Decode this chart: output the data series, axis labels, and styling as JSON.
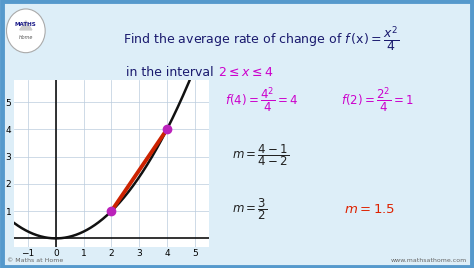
{
  "bg_color": "#ddeef8",
  "graph_bg": "#ffffff",
  "border_color": "#5599cc",
  "title_color": "#1a1a6e",
  "interval_color": "#cc00cc",
  "graph_xlim": [
    -1.5,
    5.5
  ],
  "graph_ylim": [
    -0.3,
    5.8
  ],
  "graph_xticks": [
    -1,
    0,
    1,
    2,
    3,
    4,
    5
  ],
  "graph_yticks": [
    1,
    2,
    3,
    4,
    5
  ],
  "curve_color": "#111111",
  "secant_color": "#cc2200",
  "point_color": "#bb22bb",
  "point1": [
    2,
    1
  ],
  "point2": [
    4,
    4
  ],
  "text_color_magenta": "#cc00cc",
  "text_color_black": "#222222",
  "text_color_red": "#dd2200",
  "text_color_darkblue": "#1a1a6e",
  "watermark_left": "© Maths at Home",
  "watermark_right": "www.mathsathome.com"
}
